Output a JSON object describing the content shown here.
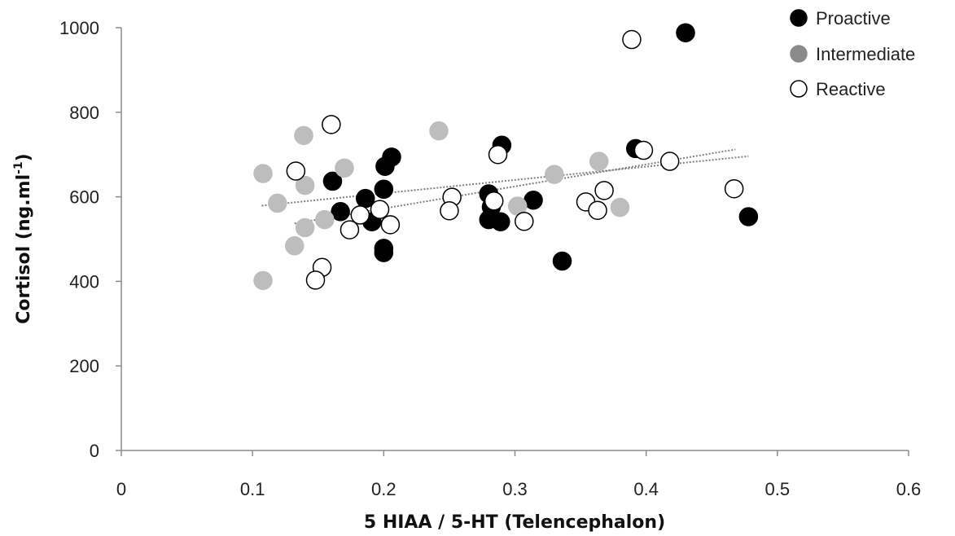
{
  "chart_data": {
    "type": "scatter",
    "title": "",
    "xlabel": "5 HIAA / 5-HT (Telencephalon)",
    "ylabel_main": "Cortisol (ng.ml",
    "ylabel_sup": "-1",
    "ylabel_close": ")",
    "xlim": [
      0,
      0.6
    ],
    "ylim": [
      0,
      1000
    ],
    "x_ticks": [
      "0",
      "0.1",
      "0.2",
      "0.3",
      "0.4",
      "0.5",
      "0.6"
    ],
    "y_ticks": [
      "0",
      "200",
      "400",
      "600",
      "800",
      "1000"
    ],
    "legend_position": "top-right",
    "grid": false,
    "series": [
      {
        "name": "Proactive",
        "marker_fill": "#000000",
        "marker_stroke": "#000000",
        "points": [
          [
            0.43,
            988
          ],
          [
            0.392,
            714
          ],
          [
            0.29,
            722
          ],
          [
            0.206,
            694
          ],
          [
            0.201,
            672
          ],
          [
            0.161,
            637
          ],
          [
            0.2,
            618
          ],
          [
            0.186,
            596
          ],
          [
            0.167,
            565
          ],
          [
            0.191,
            541
          ],
          [
            0.2,
            478
          ],
          [
            0.2,
            468
          ],
          [
            0.28,
            607
          ],
          [
            0.282,
            576
          ],
          [
            0.28,
            546
          ],
          [
            0.289,
            541
          ],
          [
            0.314,
            592
          ],
          [
            0.336,
            448
          ],
          [
            0.478,
            553
          ]
        ]
      },
      {
        "name": "Intermediate",
        "marker_fill": "#bdbdbd",
        "marker_stroke": "#bdbdbd",
        "points": [
          [
            0.108,
            655
          ],
          [
            0.119,
            585
          ],
          [
            0.139,
            745
          ],
          [
            0.14,
            627
          ],
          [
            0.17,
            668
          ],
          [
            0.14,
            527
          ],
          [
            0.132,
            484
          ],
          [
            0.155,
            546
          ],
          [
            0.108,
            402
          ],
          [
            0.242,
            756
          ],
          [
            0.33,
            653
          ],
          [
            0.364,
            684
          ],
          [
            0.38,
            575
          ],
          [
            0.302,
            578
          ]
        ]
      },
      {
        "name": "Reactive",
        "marker_fill": "#ffffff",
        "marker_stroke": "#000000",
        "points": [
          [
            0.389,
            972
          ],
          [
            0.16,
            771
          ],
          [
            0.133,
            661
          ],
          [
            0.287,
            700
          ],
          [
            0.398,
            710
          ],
          [
            0.418,
            684
          ],
          [
            0.467,
            619
          ],
          [
            0.252,
            599
          ],
          [
            0.25,
            567
          ],
          [
            0.197,
            570
          ],
          [
            0.182,
            557
          ],
          [
            0.205,
            534
          ],
          [
            0.174,
            522
          ],
          [
            0.284,
            590
          ],
          [
            0.307,
            542
          ],
          [
            0.354,
            588
          ],
          [
            0.363,
            568
          ],
          [
            0.368,
            615
          ],
          [
            0.153,
            433
          ],
          [
            0.148,
            403
          ]
        ]
      }
    ],
    "trendlines": [
      {
        "x": [
          0.107,
          0.478
        ],
        "y": [
          579,
          696
        ]
      },
      {
        "x": [
          0.132,
          0.468
        ],
        "y": [
          537,
          712
        ]
      }
    ],
    "trendline_color": "#808080"
  }
}
